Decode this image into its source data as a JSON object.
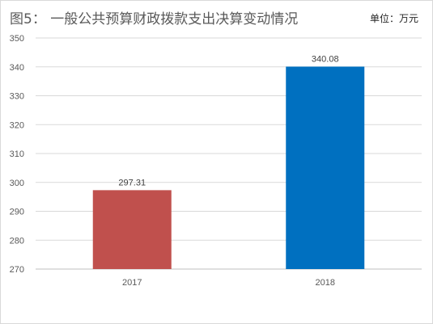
{
  "chart_data": {
    "type": "bar",
    "title": "图5：  一般公共预算财政拨款支出决算变动情况",
    "unit": "单位：万元",
    "categories": [
      "2017",
      "2018"
    ],
    "values": [
      297.31,
      340.08
    ],
    "data_labels": [
      "297.31",
      "340.08"
    ],
    "colors": [
      "#c0504d",
      "#0070c0"
    ],
    "ylim": [
      270,
      350
    ],
    "yticks": [
      270,
      280,
      290,
      300,
      310,
      320,
      330,
      340,
      350
    ],
    "grid": true,
    "legend": "none"
  }
}
